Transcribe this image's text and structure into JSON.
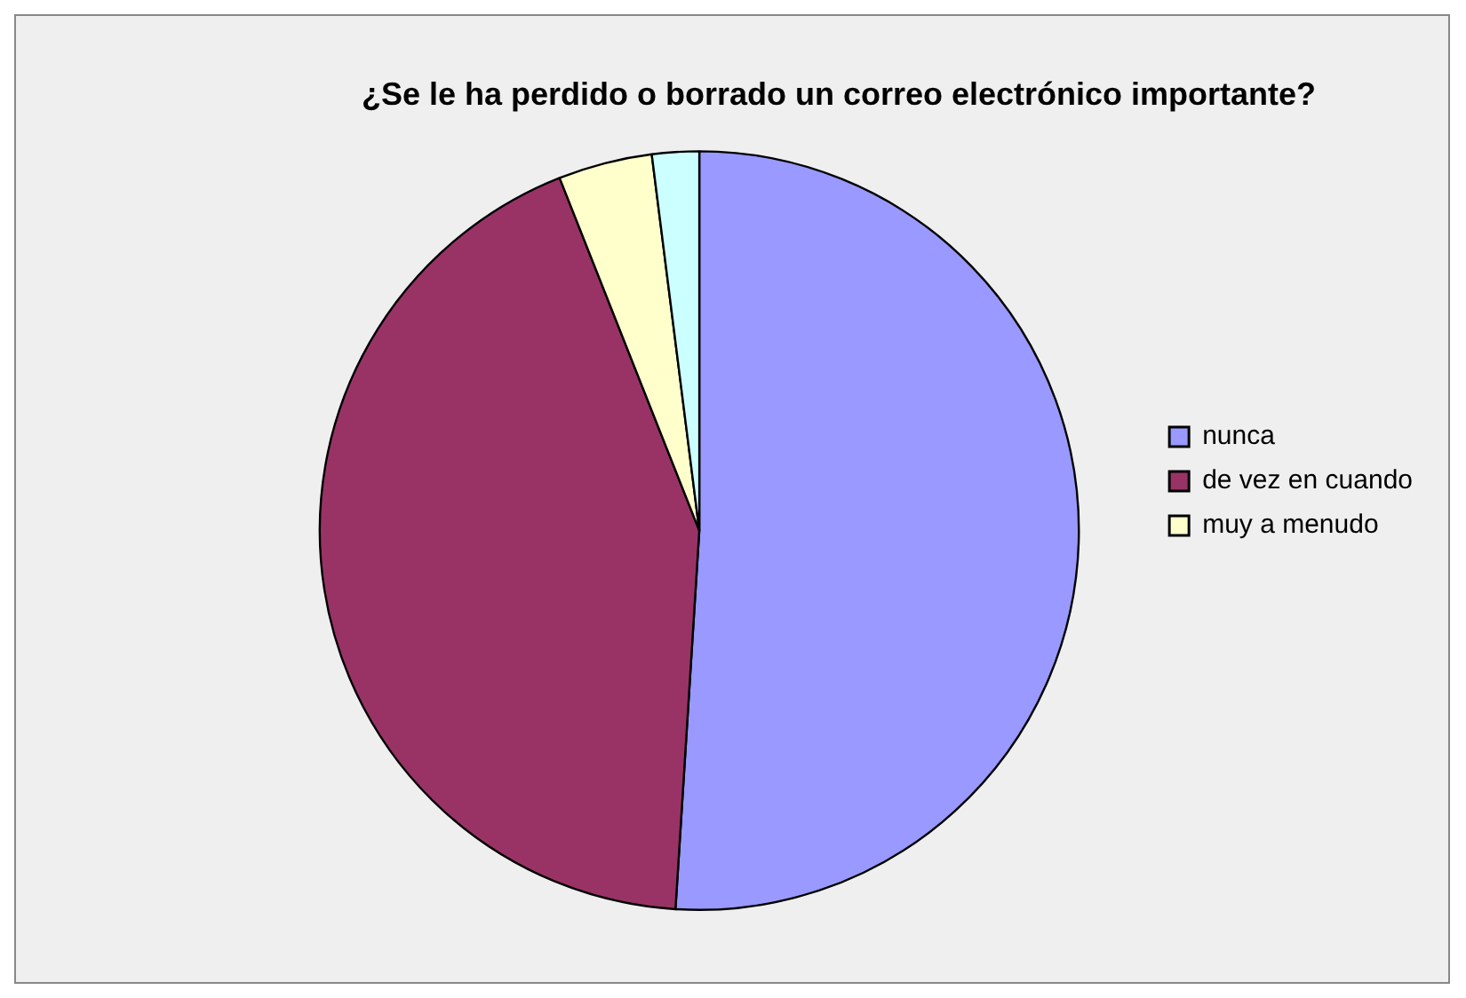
{
  "chart_data": {
    "type": "pie",
    "title": "¿Se le ha perdido o borrado un correo electrónico importante?",
    "categories": [
      "nunca",
      "de vez en cuando",
      "muy a menudo",
      null
    ],
    "values": [
      51,
      43,
      4,
      2
    ],
    "colors": [
      "#9999ff",
      "#993366",
      "#ffffcc",
      "#ccffff"
    ],
    "legend": "right"
  }
}
